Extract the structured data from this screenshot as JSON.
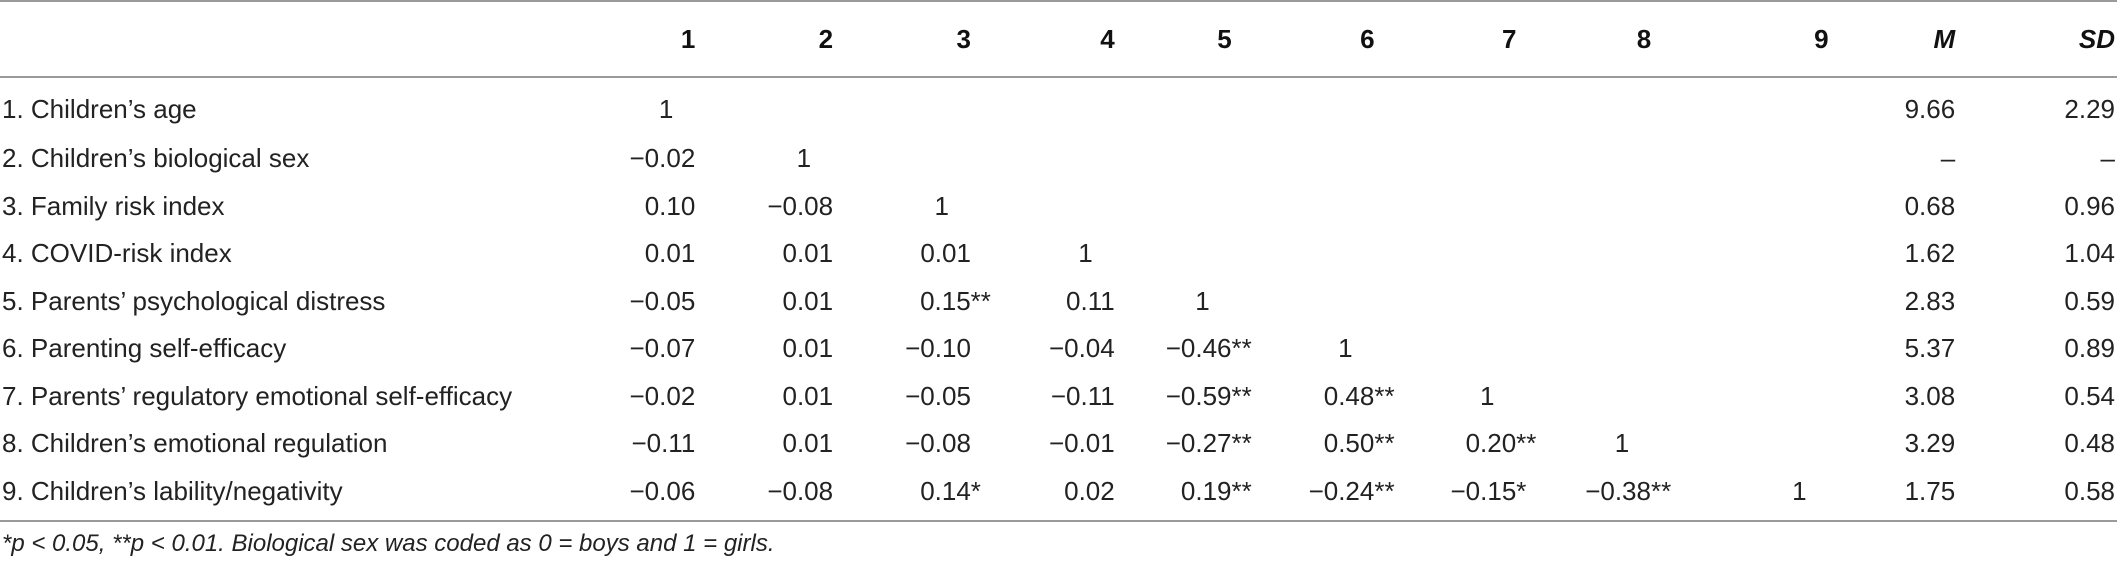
{
  "headers": [
    "",
    "1",
    "2",
    "3",
    "4",
    "5",
    "6",
    "7",
    "8",
    "9",
    "M",
    "SD"
  ],
  "rows": [
    {
      "label": "1. Children’s age",
      "cells": [
        "1",
        "",
        "",
        "",
        "",
        "",
        "",
        "",
        "",
        "9.66",
        "2.29"
      ]
    },
    {
      "label": "2. Children’s biological sex",
      "cells": [
        "−0.02",
        "1",
        "",
        "",
        "",
        "",
        "",
        "",
        "",
        "–",
        "–"
      ]
    },
    {
      "label": "3. Family risk index",
      "cells": [
        "0.10",
        "−0.08",
        "1",
        "",
        "",
        "",
        "",
        "",
        "",
        "0.68",
        "0.96"
      ]
    },
    {
      "label": "4. COVID-risk index",
      "cells": [
        "0.01",
        "0.01",
        "0.01",
        "1",
        "",
        "",
        "",
        "",
        "",
        "1.62",
        "1.04"
      ]
    },
    {
      "label": "5. Parents’ psychological distress",
      "cells": [
        "−0.05",
        "0.01",
        "0.15**",
        "0.11",
        "1",
        "",
        "",
        "",
        "",
        "2.83",
        "0.59"
      ]
    },
    {
      "label": "6. Parenting self-efficacy",
      "cells": [
        "−0.07",
        "0.01",
        "−0.10",
        "−0.04",
        "−0.46**",
        "1",
        "",
        "",
        "",
        "5.37",
        "0.89"
      ]
    },
    {
      "label": "7. Parents’ regulatory emotional self-efficacy",
      "cells": [
        "−0.02",
        "0.01",
        "−0.05",
        "−0.11",
        "−0.59**",
        "0.48**",
        "1",
        "",
        "",
        "3.08",
        "0.54"
      ]
    },
    {
      "label": "8. Children’s emotional regulation",
      "cells": [
        "−0.11",
        "0.01",
        "−0.08",
        "−0.01",
        "−0.27**",
        "0.50**",
        "0.20**",
        "1",
        "",
        "3.29",
        "0.48"
      ]
    },
    {
      "label": "9. Children’s lability/negativity",
      "cells": [
        "−0.06",
        "−0.08",
        "0.14*",
        "0.02",
        "0.19**",
        "−0.24**",
        "−0.15*",
        "−0.38**",
        "1",
        "1.75",
        "0.58"
      ]
    }
  ],
  "note": "*p < 0.05, **p < 0.01. Biological sex was coded as 0 = boys and 1 = girls."
}
